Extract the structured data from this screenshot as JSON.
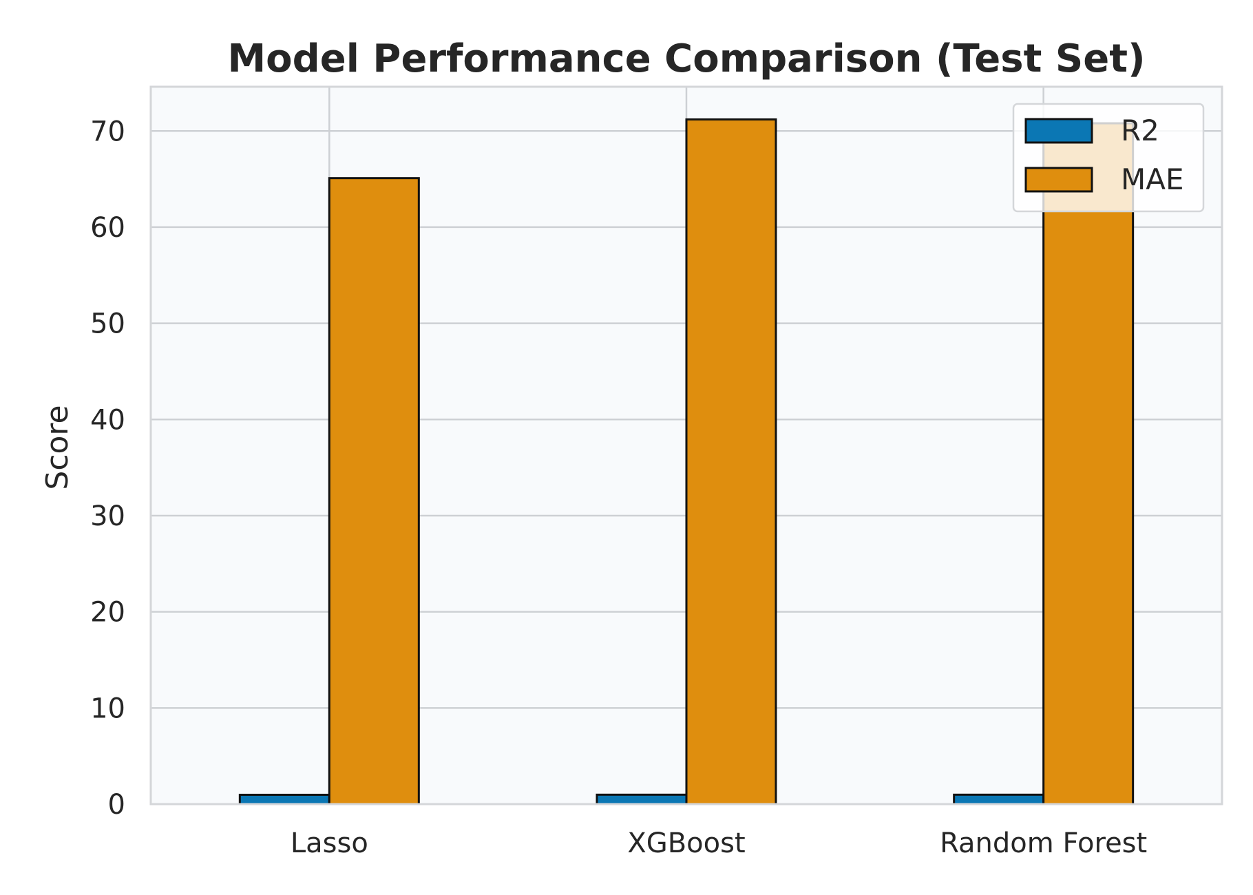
{
  "chart_data": {
    "type": "bar",
    "title": "Model Performance Comparison (Test Set)",
    "xlabel": "",
    "ylabel": "Score",
    "categories": [
      "Lasso",
      "XGBoost",
      "Random Forest"
    ],
    "series": [
      {
        "name": "R2",
        "values": [
          0.97,
          0.98,
          0.98
        ],
        "color": "#0b77b4"
      },
      {
        "name": "MAE",
        "values": [
          65.1,
          71.2,
          70.8
        ],
        "color": "#df8e0e"
      }
    ],
    "ylim": [
      0,
      74.6
    ],
    "yticks": [
      0,
      10,
      20,
      30,
      40,
      50,
      60,
      70
    ],
    "grid": true,
    "legend_position": "top-right",
    "colors": {
      "plot_background": "#f8fafc",
      "grid": "#cdd0d4",
      "axes_edge": "#d4d6d9",
      "bar_edge": "#111111",
      "text": "#262626"
    }
  }
}
